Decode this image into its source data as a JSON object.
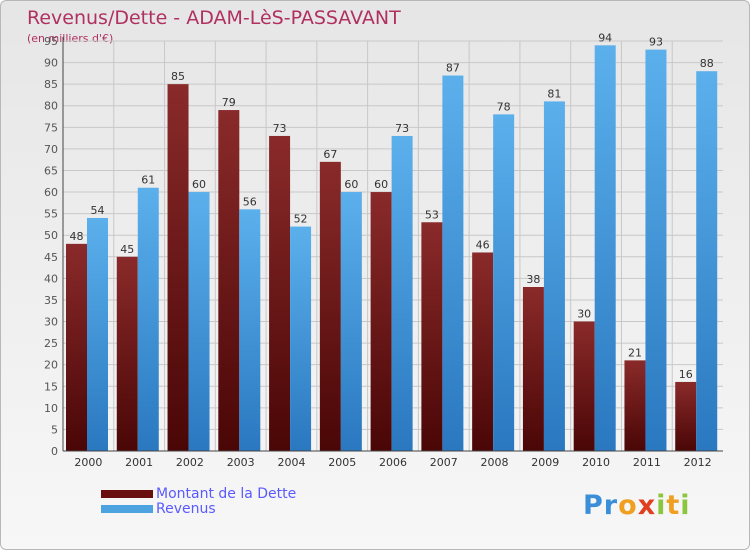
{
  "chart_data": {
    "type": "bar",
    "title": "Revenus/Dette - ADAM-LèS-PASSAVANT",
    "subtitle": "(en milliers d'€)",
    "categories": [
      "2000",
      "2001",
      "2002",
      "2003",
      "2004",
      "2005",
      "2006",
      "2007",
      "2008",
      "2009",
      "2010",
      "2011",
      "2012"
    ],
    "series": [
      {
        "name": "Montant de la Dette",
        "color": "#7a1f1f",
        "values": [
          48,
          45,
          85,
          79,
          73,
          67,
          60,
          53,
          46,
          38,
          30,
          21,
          16
        ]
      },
      {
        "name": "Revenus",
        "color": "#4da3e0",
        "values": [
          54,
          61,
          60,
          56,
          52,
          60,
          73,
          87,
          78,
          81,
          94,
          93,
          88
        ]
      }
    ],
    "ylim": [
      0,
      95
    ],
    "yticks": [
      0,
      5,
      10,
      15,
      20,
      25,
      30,
      35,
      40,
      45,
      50,
      55,
      60,
      65,
      70,
      75,
      80,
      85,
      90,
      95
    ],
    "grid": true,
    "legend_position": "bottom-left"
  },
  "logo": {
    "letters": [
      {
        "char": "P",
        "color": "#3a8fd8"
      },
      {
        "char": "r",
        "color": "#3a8fd8"
      },
      {
        "char": "o",
        "color": "#f0a020"
      },
      {
        "char": "x",
        "color": "#e04020"
      },
      {
        "char": "i",
        "color": "#8cc63f"
      },
      {
        "char": "t",
        "color": "#f0a020"
      },
      {
        "char": "i",
        "color": "#8cc63f"
      }
    ]
  }
}
